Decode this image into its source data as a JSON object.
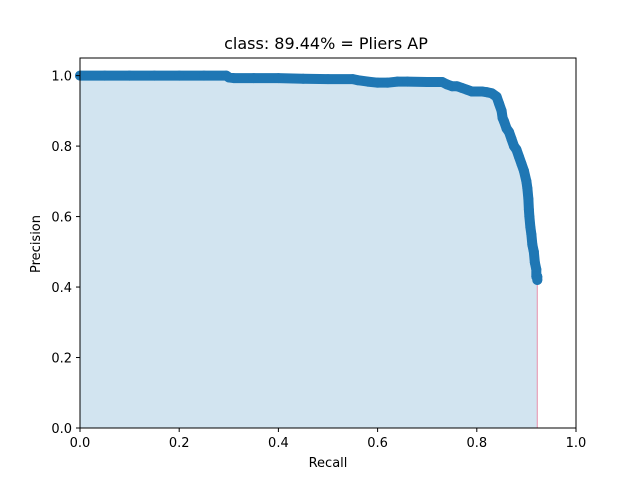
{
  "chart_data": {
    "type": "area",
    "title": "class: 89.44% = Pliers AP",
    "xlabel": "Recall",
    "ylabel": "Precision",
    "xlim": [
      0.0,
      1.0
    ],
    "ylim": [
      0.0,
      1.05
    ],
    "xticks": [
      0.0,
      0.2,
      0.4,
      0.6,
      0.8,
      1.0
    ],
    "yticks": [
      0.0,
      0.2,
      0.4,
      0.6,
      0.8,
      1.0
    ],
    "xtick_labels": [
      "0.0",
      "0.2",
      "0.4",
      "0.6",
      "0.8",
      "1.0"
    ],
    "ytick_labels": [
      "0.0",
      "0.2",
      "0.4",
      "0.6",
      "0.8",
      "1.0"
    ],
    "grid": false,
    "series": [
      {
        "x": [
          0.0,
          0.05,
          0.1,
          0.15,
          0.2,
          0.25,
          0.295,
          0.3,
          0.31,
          0.35,
          0.4,
          0.45,
          0.5,
          0.55,
          0.56,
          0.58,
          0.6,
          0.62,
          0.64,
          0.66,
          0.7,
          0.73,
          0.74,
          0.75,
          0.76,
          0.77,
          0.78,
          0.79,
          0.8,
          0.81,
          0.82,
          0.83,
          0.84,
          0.845,
          0.85,
          0.852,
          0.855,
          0.86,
          0.865,
          0.87,
          0.875,
          0.88,
          0.885,
          0.89,
          0.895,
          0.9,
          0.902,
          0.904,
          0.905,
          0.906,
          0.908,
          0.91,
          0.912,
          0.915,
          0.917,
          0.92,
          0.92,
          0.922,
          0.922
        ],
        "y": [
          1.0,
          1.0,
          1.0,
          1.0,
          1.0,
          1.0,
          1.0,
          0.995,
          0.993,
          0.993,
          0.993,
          0.991,
          0.99,
          0.99,
          0.987,
          0.983,
          0.98,
          0.98,
          0.983,
          0.983,
          0.982,
          0.982,
          0.975,
          0.97,
          0.97,
          0.965,
          0.96,
          0.955,
          0.955,
          0.955,
          0.953,
          0.95,
          0.94,
          0.92,
          0.9,
          0.88,
          0.87,
          0.85,
          0.84,
          0.82,
          0.8,
          0.79,
          0.77,
          0.75,
          0.73,
          0.7,
          0.68,
          0.65,
          0.62,
          0.6,
          0.57,
          0.55,
          0.52,
          0.5,
          0.47,
          0.45,
          0.43,
          0.43,
          0.42
        ]
      }
    ],
    "colors": {
      "line": "#1f77b4",
      "fill": "#1f77b4",
      "drop_line": "#e8a0b8",
      "axes": "#000000"
    }
  }
}
